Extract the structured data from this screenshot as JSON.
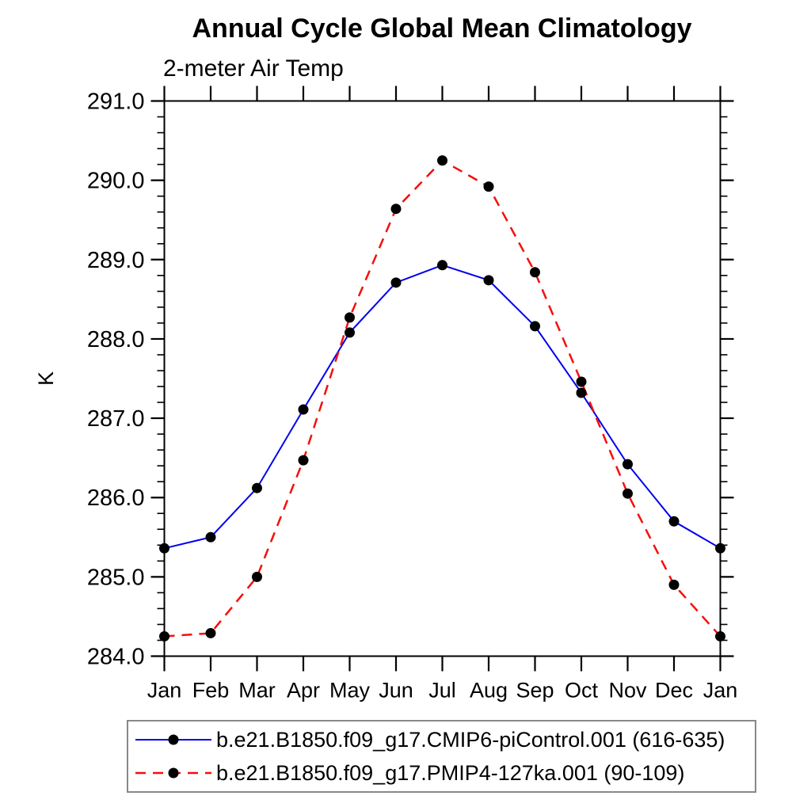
{
  "title": "Annual Cycle Global Mean Climatology",
  "subtitle": "2-meter Air Temp",
  "chart_data": {
    "type": "line",
    "x": [
      "Jan",
      "Feb",
      "Mar",
      "Apr",
      "May",
      "Jun",
      "Jul",
      "Aug",
      "Sep",
      "Oct",
      "Nov",
      "Dec",
      "Jan"
    ],
    "xlabel": "",
    "ylabel": "K",
    "ylim": [
      284.0,
      291.0
    ],
    "y_major_step": 1.0,
    "y_minor_step": 0.2,
    "grid": "off",
    "legend_position": "bottom",
    "title": "Annual Cycle Global Mean Climatology",
    "subtitle": "2-meter Air Temp",
    "series": [
      {
        "name": "b.e21.B1850.f09_g17.CMIP6-piControl.001 (616-635)",
        "line_color": "#0000ee",
        "line_style": "solid",
        "line_width": 2,
        "marker": "filled-circle",
        "marker_color": "#000000",
        "values": [
          285.36,
          285.5,
          286.12,
          287.11,
          288.08,
          288.71,
          288.93,
          288.74,
          288.16,
          287.32,
          286.42,
          285.7,
          285.36
        ]
      },
      {
        "name": "b.e21.B1850.f09_g17.PMIP4-127ka.001 (90-109)",
        "line_color": "#f50f0c",
        "line_style": "dashed",
        "line_width": 2.5,
        "marker": "filled-circle",
        "marker_color": "#000000",
        "values": [
          284.25,
          284.29,
          285.0,
          286.47,
          288.27,
          289.64,
          290.25,
          289.92,
          288.84,
          287.46,
          286.05,
          284.9,
          284.25
        ]
      }
    ]
  }
}
